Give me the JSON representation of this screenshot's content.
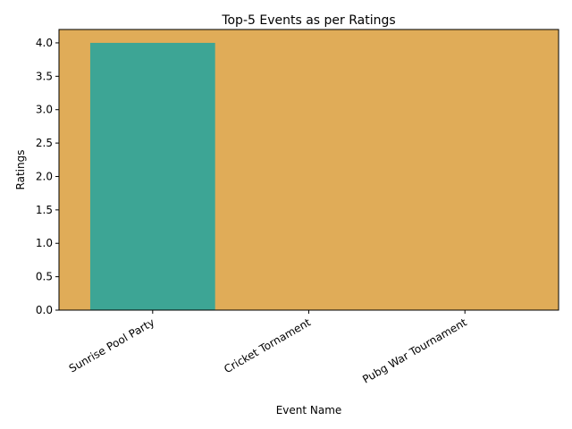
{
  "chart_data": {
    "type": "bar",
    "title": "Top-5 Events as per Ratings",
    "xlabel": "Event Name",
    "ylabel": "Ratings",
    "categories": [
      "Sunrise Pool Party",
      "Cricket Tornament",
      "Pubg War Tournament"
    ],
    "values": [
      4,
      0,
      0
    ],
    "ylim": [
      0,
      4.2
    ],
    "yticks": [
      0.0,
      0.5,
      1.0,
      1.5,
      2.0,
      2.5,
      3.0,
      3.5,
      4.0
    ],
    "ytick_labels": [
      "0.0",
      "0.5",
      "1.0",
      "1.5",
      "2.0",
      "2.5",
      "3.0",
      "3.5",
      "4.0"
    ],
    "grid": false,
    "colors": {
      "background": "#e0ac58",
      "bar": "#3da595"
    }
  }
}
